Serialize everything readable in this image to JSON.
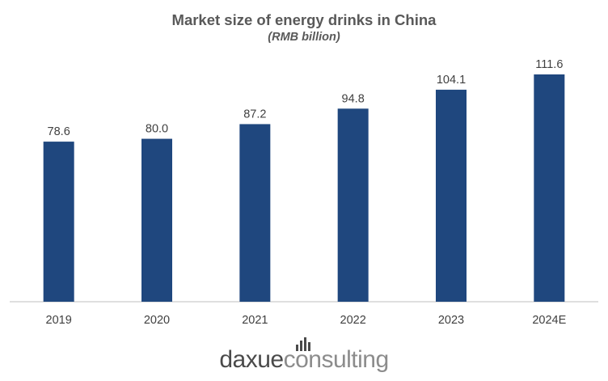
{
  "chart_data": {
    "type": "bar",
    "title": "Market size of energy drinks in China",
    "subtitle": "(RMB billion)",
    "categories": [
      "2019",
      "2020",
      "2021",
      "2022",
      "2023",
      "2024E"
    ],
    "values": [
      78.6,
      80.0,
      87.2,
      94.8,
      104.1,
      111.6
    ],
    "data_labels": [
      "78.6",
      "80.0",
      "87.2",
      "94.8",
      "104.1",
      "111.6"
    ],
    "xlabel": "",
    "ylabel": "",
    "ylim": [
      0,
      125
    ],
    "grid": false,
    "legend": "none",
    "bar_color": "#1f477e"
  },
  "logo": {
    "part1": "daxue",
    "part2": "consulting",
    "icon": "bar-chart-icon"
  },
  "colors": {
    "bar": "#1f477e",
    "title_text": "#595959",
    "axis": "#bfbfbf",
    "label_text": "#404040"
  }
}
